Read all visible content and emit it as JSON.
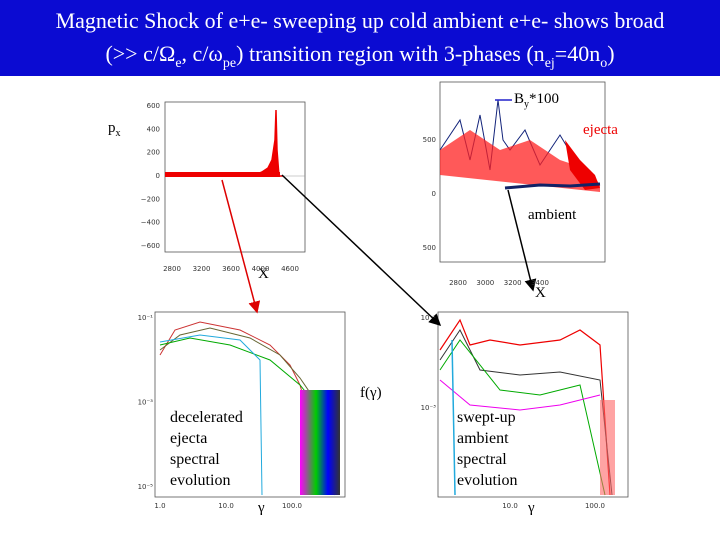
{
  "title": {
    "line1": "Magnetic Shock of e+e- sweeping up cold ambient e+e- shows broad",
    "line2": [
      "(>> c/Ω",
      "e",
      ", c/ω",
      "pe",
      ") transition region with 3-phases (n",
      "ej",
      "=40n",
      "o",
      ")"
    ]
  },
  "top_left": {
    "ylabel": "p",
    "ylabel_sub": "x",
    "xlabel": "X",
    "yticks": [
      "600",
      "400",
      "200",
      "0",
      "−200",
      "−400",
      "−600"
    ],
    "xticks": [
      "2800",
      "3200",
      "3600",
      "4000",
      "4600"
    ]
  },
  "top_right": {
    "field_label": "B",
    "field_sub": "y",
    "field_suffix": "*100",
    "labels": [
      "ejecta",
      "ambient"
    ],
    "xlabel": "X",
    "yticks": [
      "500",
      "0",
      "500"
    ],
    "xticks": [
      "2800",
      "3000",
      "3200",
      "3400"
    ]
  },
  "shared_ylabel": "f(γ)",
  "bottom_left": {
    "annotation": [
      "decelerated",
      "ejecta",
      "spectral",
      "evolution"
    ],
    "yticks": [
      "10⁻¹",
      "10⁻³",
      "10⁻⁵"
    ],
    "xticks": [
      "1.0",
      "10.0",
      "100.0"
    ],
    "xlabel": "γ"
  },
  "bottom_right": {
    "annotation": [
      "swept-up",
      "ambient",
      "spectral",
      "evolution"
    ],
    "yticks": [
      "10⁻¹",
      "10⁻³"
    ],
    "xticks": [
      "10.0",
      "100.0"
    ],
    "xlabel": "γ"
  }
}
